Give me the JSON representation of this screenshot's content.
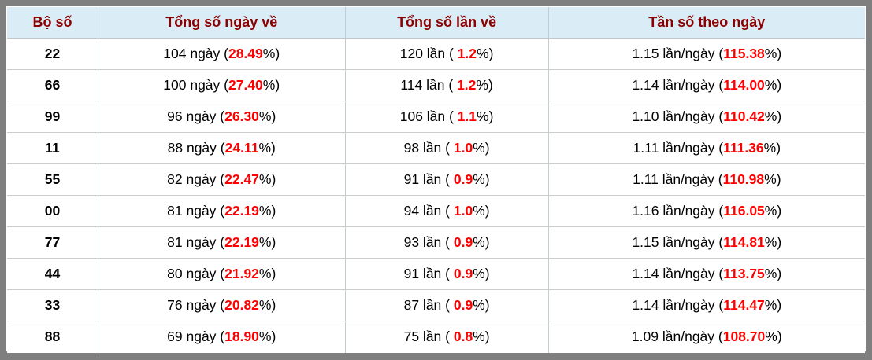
{
  "table": {
    "columns": [
      {
        "key": "pair",
        "label": "Bộ số"
      },
      {
        "key": "days",
        "label": "Tổng số ngày về"
      },
      {
        "key": "times",
        "label": "Tổng số lần về"
      },
      {
        "key": "freq",
        "label": "Tần số theo ngày"
      }
    ],
    "units": {
      "days": "ngày",
      "times": "lần",
      "freq": "lần/ngày"
    },
    "fmt": {
      "open": "(",
      "open_spaced": "( ",
      "close": "%)"
    },
    "rows": [
      {
        "pair": "22",
        "days": "104",
        "days_pct": "28.49",
        "times": "120",
        "times_pct": "1.2",
        "freq": "1.15",
        "freq_pct": "115.38"
      },
      {
        "pair": "66",
        "days": "100",
        "days_pct": "27.40",
        "times": "114",
        "times_pct": "1.2",
        "freq": "1.14",
        "freq_pct": "114.00"
      },
      {
        "pair": "99",
        "days": "96",
        "days_pct": "26.30",
        "times": "106",
        "times_pct": "1.1",
        "freq": "1.10",
        "freq_pct": "110.42"
      },
      {
        "pair": "11",
        "days": "88",
        "days_pct": "24.11",
        "times": "98",
        "times_pct": "1.0",
        "freq": "1.11",
        "freq_pct": "111.36"
      },
      {
        "pair": "55",
        "days": "82",
        "days_pct": "22.47",
        "times": "91",
        "times_pct": "0.9",
        "freq": "1.11",
        "freq_pct": "110.98"
      },
      {
        "pair": "00",
        "days": "81",
        "days_pct": "22.19",
        "times": "94",
        "times_pct": "1.0",
        "freq": "1.16",
        "freq_pct": "116.05"
      },
      {
        "pair": "77",
        "days": "81",
        "days_pct": "22.19",
        "times": "93",
        "times_pct": "0.9",
        "freq": "1.15",
        "freq_pct": "114.81"
      },
      {
        "pair": "44",
        "days": "80",
        "days_pct": "21.92",
        "times": "91",
        "times_pct": "0.9",
        "freq": "1.14",
        "freq_pct": "113.75"
      },
      {
        "pair": "33",
        "days": "76",
        "days_pct": "20.82",
        "times": "87",
        "times_pct": "0.9",
        "freq": "1.14",
        "freq_pct": "114.47"
      },
      {
        "pair": "88",
        "days": "69",
        "days_pct": "18.90",
        "times": "75",
        "times_pct": "0.8",
        "freq": "1.09",
        "freq_pct": "108.70"
      }
    ],
    "colors": {
      "frame": "#7f7f7f",
      "header_bg": "#daecf5",
      "header_text": "#8b0000",
      "highlight": "#ff0000",
      "body_text": "#000000"
    }
  }
}
